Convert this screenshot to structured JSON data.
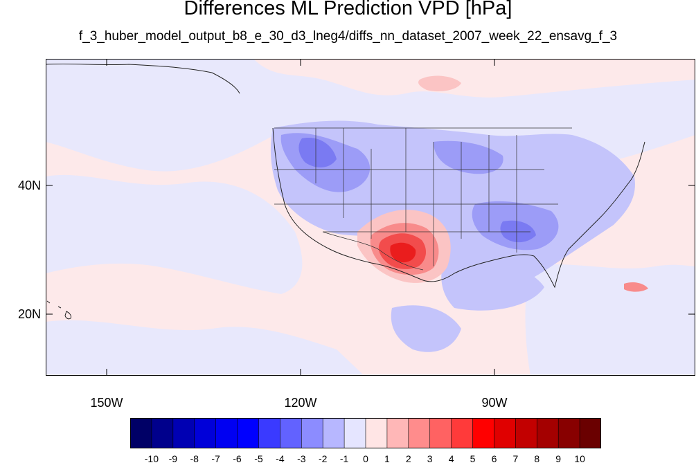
{
  "title": "Differences ML Prediction VPD [hPa]",
  "subtitle": "f_3_huber_model_output_b8_e_30_d3_lneg4/diffs_nn_dataset_2007_week_22_ensavg_f_3",
  "axes": {
    "lat_ticks": [
      {
        "label": "40N",
        "value": 40
      },
      {
        "label": "20N",
        "value": 20
      }
    ],
    "lon_ticks": [
      {
        "label": "150W",
        "value": -150
      },
      {
        "label": "120W",
        "value": -120
      },
      {
        "label": "90W",
        "value": -90
      }
    ],
    "lon_range": [
      -159.5,
      -59
    ],
    "lat_range": [
      11,
      59
    ]
  },
  "colorbar": {
    "labels": [
      "-10",
      "-9",
      "-8",
      "-7",
      "-6",
      "-5",
      "-4",
      "-3",
      "-2",
      "-1",
      "0",
      "1",
      "2",
      "3",
      "4",
      "5",
      "6",
      "7",
      "8",
      "9",
      "10"
    ],
    "colors": [
      "#000066",
      "#00008c",
      "#0000b3",
      "#0000d9",
      "#0000f2",
      "#0000ff",
      "#3a3aff",
      "#6262ff",
      "#8c8cff",
      "#b7b7ff",
      "#e5e5ff",
      "#ffe5e5",
      "#ffb7b7",
      "#ff8c8c",
      "#ff6262",
      "#ff3a3a",
      "#ff0000",
      "#e00000",
      "#c20000",
      "#a40000",
      "#880000",
      "#6a0000"
    ]
  },
  "colors": {
    "near_zero_positive": "#ffe5e5",
    "near_zero_negative": "#e5e5ff"
  }
}
